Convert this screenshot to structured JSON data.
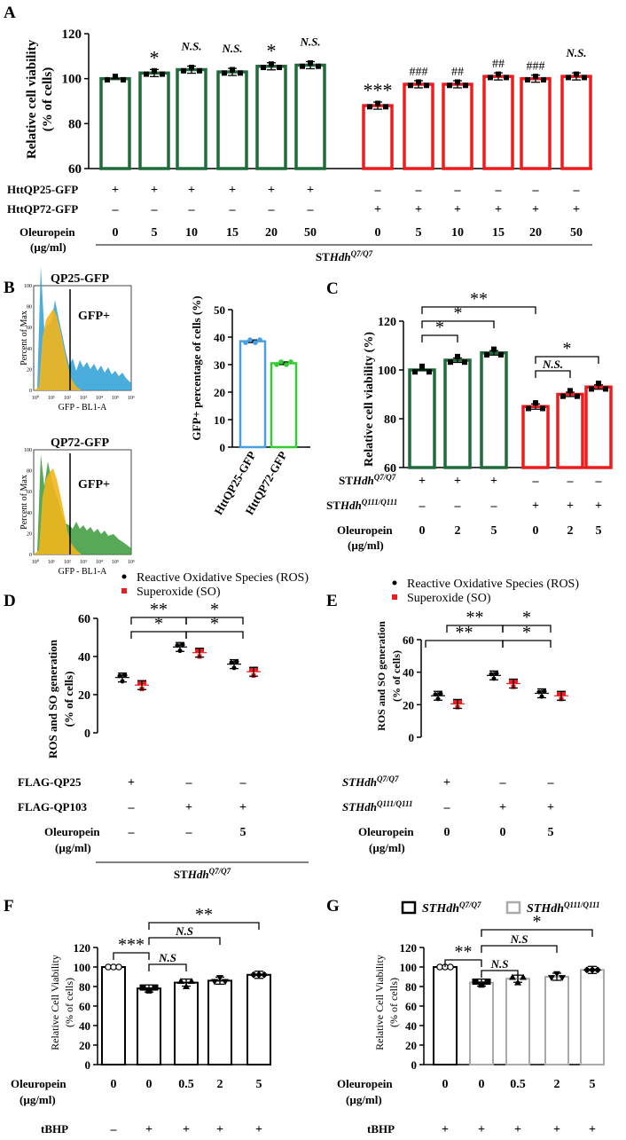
{
  "panel_letters": [
    "A",
    "B",
    "C",
    "D",
    "E",
    "F",
    "G"
  ],
  "chart_data": [
    {
      "panel": "A",
      "type": "bar",
      "ylabel_lines": [
        "Relative cell viability",
        "(% of cells)"
      ],
      "ylim": [
        60,
        120
      ],
      "yticks": [
        60,
        80,
        100,
        120
      ],
      "groups": [
        {
          "color": "#1f6b3a",
          "values": [
            100,
            102.5,
            104,
            103,
            105.5,
            106
          ],
          "labels": [
            "",
            "*",
            "N.S.",
            "N.S.",
            "*",
            "N.S."
          ]
        },
        {
          "color": "#ee1c1c",
          "values": [
            88,
            97.5,
            97.5,
            101,
            100,
            101
          ],
          "labels": [
            "***",
            "###",
            "##",
            "##",
            "###",
            "N.S."
          ]
        }
      ],
      "conditions": [
        {
          "label": "HttQP25-GFP",
          "values": [
            "+",
            "+",
            "+",
            "+",
            "+",
            "+",
            "–",
            "–",
            "–",
            "–",
            "–",
            "–"
          ]
        },
        {
          "label": "HttQP72-GFP",
          "values": [
            "–",
            "–",
            "–",
            "–",
            "–",
            "–",
            "+",
            "+",
            "+",
            "+",
            "+",
            "+"
          ]
        },
        {
          "label": "Oleuropein",
          "label2": "(µg/ml)",
          "values": [
            "0",
            "5",
            "10",
            "15",
            "20",
            "50",
            "0",
            "5",
            "10",
            "15",
            "20",
            "50"
          ]
        }
      ],
      "footer": "STHdhQ7/Q7"
    },
    {
      "panel": "B",
      "flow_plots": [
        {
          "title": "QP25-GFP",
          "gate_label": "GFP+",
          "ylabel": "Percent of Max",
          "xlabel": "GFP - BL1-A",
          "color": "#2b9fd6"
        },
        {
          "title": "QP72-GFP",
          "gate_label": "GFP+",
          "ylabel": "Percent of Max",
          "xlabel": "GFP - BL1-A",
          "color": "#2e8b2e"
        }
      ],
      "flow_xticks": [
        "10⁰",
        "10¹",
        "10²",
        "10³",
        "10⁴",
        "10⁵",
        "10⁶"
      ],
      "flow_yticks": [
        "0",
        "20",
        "40",
        "60",
        "80",
        "100"
      ],
      "type": "bar",
      "ylabel": "GFP+ percentage of cells (%)",
      "ylim": [
        0,
        50
      ],
      "yticks": [
        0,
        10,
        20,
        30,
        40,
        50
      ],
      "categories": [
        "HttQP25-GFP",
        "HttQP72-GFP"
      ],
      "values": [
        38.5,
        30.5
      ],
      "colors": [
        "#4a9fe0",
        "#33cc33"
      ]
    },
    {
      "panel": "C",
      "type": "bar",
      "ylabel": "Relative cell viability (%)",
      "ylim": [
        60,
        120
      ],
      "yticks": [
        60,
        80,
        100,
        120
      ],
      "values": [
        100,
        104,
        107,
        85,
        90,
        93
      ],
      "colors": [
        "#1f6b3a",
        "#1f6b3a",
        "#1f6b3a",
        "#ee1c1c",
        "#ee1c1c",
        "#ee1c1c"
      ],
      "significance": [
        "**",
        "*",
        "*",
        "N.S.",
        "*"
      ],
      "conditions": [
        {
          "label": "STHdhQ7/Q7",
          "values": [
            "+",
            "+",
            "+",
            "–",
            "–",
            "–"
          ]
        },
        {
          "label": "STHdhQ111/Q111",
          "values": [
            "–",
            "–",
            "–",
            "+",
            "+",
            "+"
          ]
        },
        {
          "label": "Oleuropein",
          "label2": "(µg/ml)",
          "values": [
            "0",
            "2",
            "5",
            "0",
            "2",
            "5"
          ]
        }
      ]
    },
    {
      "panel": "D",
      "type": "scatter",
      "legend": [
        "Reactive Oxidative Species (ROS)",
        "Superoxide (SO)"
      ],
      "ylabel_lines": [
        "ROS and SO generation",
        "(% of cells)"
      ],
      "ylim": [
        0,
        60
      ],
      "yticks": [
        0,
        20,
        40,
        60
      ],
      "series": [
        {
          "name": "ROS",
          "values": [
            29,
            45,
            36
          ]
        },
        {
          "name": "SO",
          "values": [
            25,
            42,
            32
          ]
        }
      ],
      "significance": [
        "**",
        "*",
        "*",
        "*"
      ],
      "conditions": [
        {
          "label": "FLAG-QP25",
          "values": [
            "+",
            "–",
            "–"
          ]
        },
        {
          "label": "FLAG-QP103",
          "values": [
            "–",
            "+",
            "+"
          ]
        },
        {
          "label": "Oleuropein",
          "label2": "(µg/ml)",
          "values": [
            "–",
            "–",
            "5"
          ]
        }
      ],
      "footer": "STHdhQ7/Q7"
    },
    {
      "panel": "E",
      "type": "scatter",
      "legend": [
        "Reactive Oxidative Species (ROS)",
        "Superoxide (SO)"
      ],
      "ylabel_lines": [
        "ROS and SO generation",
        "(% of cells)"
      ],
      "ylim": [
        0,
        60
      ],
      "yticks": [
        0,
        20,
        40,
        60
      ],
      "series": [
        {
          "name": "ROS",
          "values": [
            25.5,
            38,
            27
          ]
        },
        {
          "name": "SO",
          "values": [
            20.5,
            33,
            25.5
          ]
        }
      ],
      "significance": [
        "**",
        "*",
        "**",
        "*"
      ],
      "conditions": [
        {
          "label": "STHdhQ7/Q7",
          "values": [
            "+",
            "–",
            "–"
          ]
        },
        {
          "label": "STHdhQ111/Q111",
          "values": [
            "–",
            "+",
            "+"
          ]
        },
        {
          "label": "Oleuropein",
          "label2": "(µg/ml)",
          "values": [
            "0",
            "0",
            "5"
          ]
        }
      ]
    },
    {
      "panel": "F",
      "type": "bar",
      "ylabel_lines": [
        "Relative Cell Viability",
        "(% of cells)"
      ],
      "ylim": [
        0,
        120
      ],
      "yticks": [
        0,
        20,
        40,
        60,
        80,
        100,
        120
      ],
      "values": [
        100,
        78,
        84,
        86,
        92
      ],
      "significance": [
        "**",
        "N.S",
        "***",
        "N.S"
      ],
      "conditions": [
        {
          "label": "Oleuropein",
          "label2": "(µg/ml)",
          "values": [
            "0",
            "0",
            "0.5",
            "2",
            "5"
          ]
        },
        {
          "label": "tBHP",
          "values": [
            "–",
            "+",
            "+",
            "+",
            "+"
          ]
        }
      ]
    },
    {
      "panel": "G",
      "type": "bar",
      "legend": [
        "STHdhQ7/Q7",
        "STHdhQ111/Q111"
      ],
      "ylabel_lines": [
        "Relative Cell Viability",
        "(% of cells)"
      ],
      "ylim": [
        0,
        120
      ],
      "yticks": [
        0,
        20,
        40,
        60,
        80,
        100,
        120
      ],
      "values": [
        100,
        84,
        88,
        90,
        97
      ],
      "colors": [
        "#000000",
        "#aaaaaa",
        "#aaaaaa",
        "#aaaaaa",
        "#aaaaaa"
      ],
      "significance": [
        "*",
        "N.S",
        "**",
        "N.S"
      ],
      "conditions": [
        {
          "label": "Oleuropein",
          "label2": "(µg/ml)",
          "values": [
            "0",
            "0",
            "0.5",
            "2",
            "5"
          ]
        },
        {
          "label": "tBHP",
          "values": [
            "+",
            "+",
            "+",
            "+",
            "+"
          ]
        }
      ]
    }
  ]
}
